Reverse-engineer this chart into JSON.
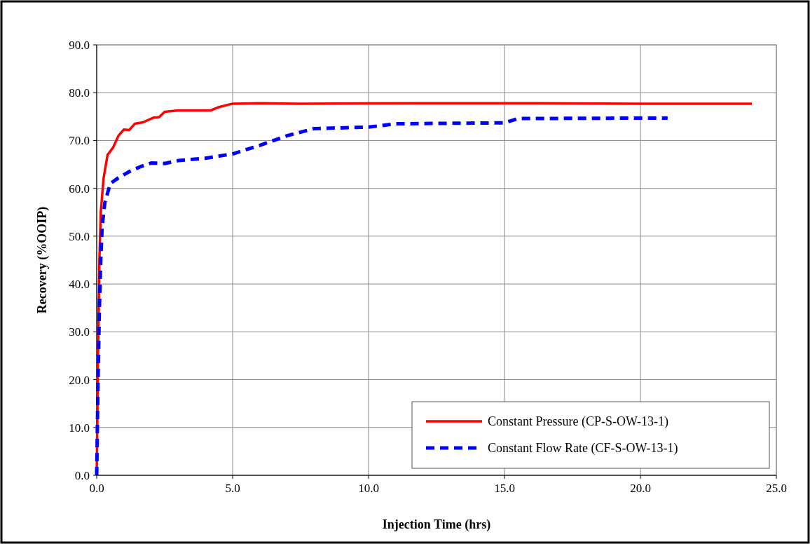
{
  "chart_data": {
    "type": "line",
    "xlabel": "Injection Time (hrs)",
    "ylabel": "Recovery (%OOIP)",
    "xlim": [
      0,
      25
    ],
    "xticks": [
      {
        "value": 0,
        "label": "0.0"
      },
      {
        "value": 5,
        "label": "5.0"
      },
      {
        "value": 10,
        "label": "10.0"
      },
      {
        "value": 15,
        "label": "15.0"
      },
      {
        "value": 20,
        "label": "20.0"
      },
      {
        "value": 25,
        "label": "25.0"
      }
    ],
    "ylim": [
      0,
      90
    ],
    "yticks": [
      {
        "value": 0,
        "label": "0.0"
      },
      {
        "value": 10,
        "label": "10.0"
      },
      {
        "value": 20,
        "label": "20.0"
      },
      {
        "value": 30,
        "label": "30.0"
      },
      {
        "value": 40,
        "label": "40.0"
      },
      {
        "value": 50,
        "label": "50.0"
      },
      {
        "value": 60,
        "label": "60.0"
      },
      {
        "value": 70,
        "label": "70.0"
      },
      {
        "value": 80,
        "label": "80.0"
      },
      {
        "value": 90,
        "label": "90.0"
      }
    ],
    "grid": true,
    "legend": "bottom right",
    "marker": "none",
    "series": [
      {
        "name": "Constant Pressure (CP-S-OW-13-1)",
        "color": "#ff0000",
        "line_style": "solid",
        "x": [
          0,
          0.05,
          0.1,
          0.15,
          0.25,
          0.4,
          0.6,
          0.8,
          1.0,
          1.2,
          1.4,
          1.7,
          2.1,
          2.3,
          2.5,
          3,
          4.2,
          4.5,
          5.0,
          6,
          7.5,
          12,
          16,
          20,
          24.1
        ],
        "values": [
          0,
          25,
          45,
          55,
          62,
          67,
          68.5,
          71,
          72.3,
          72.2,
          73.5,
          73.8,
          74.8,
          74.9,
          76,
          76.3,
          76.3,
          77,
          77.7,
          77.8,
          77.7,
          77.8,
          77.8,
          77.7,
          77.7
        ]
      },
      {
        "name": "Constant Flow Rate (CF-S-OW-13-1)",
        "color": "#0000ff",
        "line_style": "dashed",
        "x": [
          0,
          0.05,
          0.1,
          0.15,
          0.2,
          0.3,
          0.5,
          0.8,
          1.2,
          1.6,
          2,
          2.5,
          3,
          4,
          5,
          6,
          7,
          8,
          10,
          11,
          15,
          15.5,
          21
        ],
        "values": [
          0,
          20,
          35,
          45,
          52,
          57,
          61,
          62.2,
          63.5,
          64.5,
          65.3,
          65.2,
          65.8,
          66.3,
          67.2,
          69,
          71,
          72.5,
          72.8,
          73.5,
          73.7,
          74.6,
          74.7
        ]
      }
    ]
  }
}
